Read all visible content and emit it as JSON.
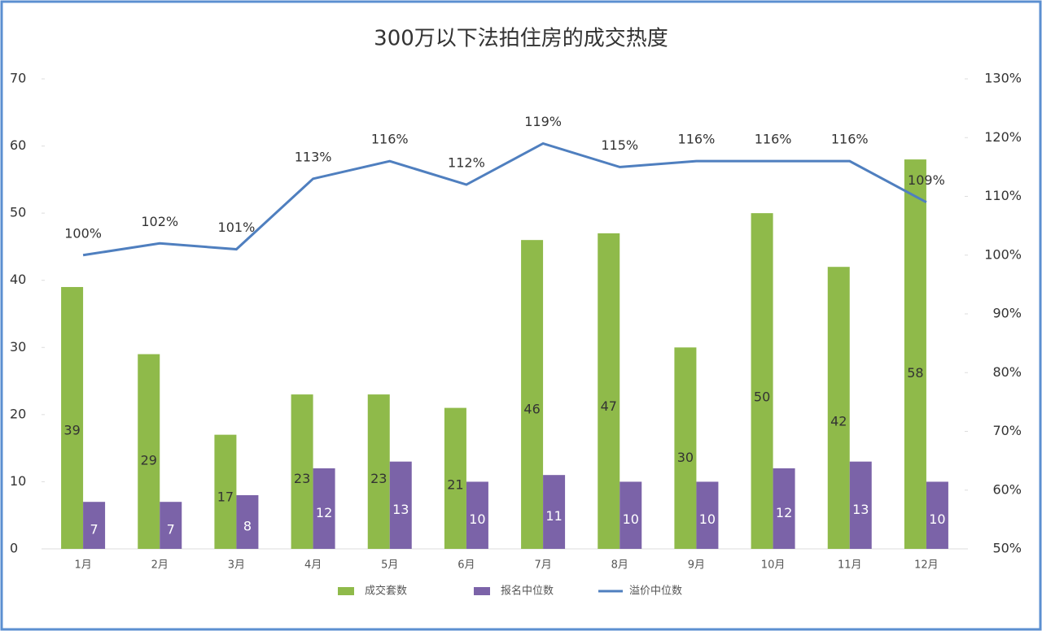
{
  "chart_data": {
    "type": "bar",
    "title": "300万以下法拍住房的成交热度",
    "categories": [
      "1月",
      "2月",
      "3月",
      "4月",
      "5月",
      "6月",
      "7月",
      "8月",
      "9月",
      "10月",
      "11月",
      "12月"
    ],
    "series": [
      {
        "name": "成交套数",
        "color": "#8fba4a",
        "values": [
          39,
          29,
          17,
          23,
          23,
          21,
          46,
          47,
          30,
          50,
          42,
          58
        ]
      },
      {
        "name": "报名中位数",
        "color": "#7b63a8",
        "values": [
          7,
          7,
          8,
          12,
          13,
          10,
          11,
          10,
          10,
          12,
          13,
          10
        ]
      },
      {
        "name": "溢价中位数",
        "color": "#4f7fbf",
        "type": "line",
        "axis": "y2",
        "values": [
          100,
          102,
          101,
          113,
          116,
          112,
          119,
          115,
          116,
          116,
          116,
          109
        ],
        "value_labels": [
          "100%",
          "102%",
          "101%",
          "113%",
          "116%",
          "112%",
          "119%",
          "115%",
          "116%",
          "116%",
          "116%",
          "109%"
        ]
      }
    ],
    "ylim": [
      0,
      70
    ],
    "yticks": [
      0,
      10,
      20,
      30,
      40,
      50,
      60,
      70
    ],
    "y2lim": [
      50,
      130
    ],
    "y2ticks": [
      {
        "value": 50,
        "label": "50%"
      },
      {
        "value": 60,
        "label": "60%"
      },
      {
        "value": 70,
        "label": "70%"
      },
      {
        "value": 80,
        "label": "80%"
      },
      {
        "value": 90,
        "label": "90%"
      },
      {
        "value": 100,
        "label": "100%"
      },
      {
        "value": 110,
        "label": "110%"
      },
      {
        "value": 120,
        "label": "120%"
      },
      {
        "value": 130,
        "label": "130%"
      }
    ],
    "legend": "bottom"
  }
}
